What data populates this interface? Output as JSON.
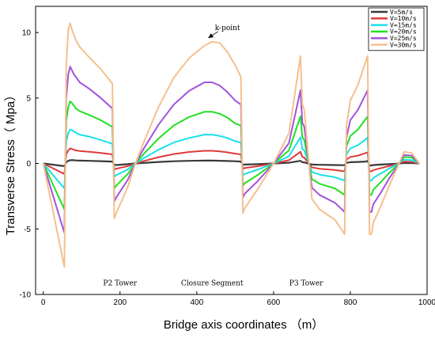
{
  "chart_data": {
    "type": "line",
    "title": "",
    "xlabel": "Bridge axis coordinates （m）",
    "ylabel": "Transverse Stress（ Mpa）",
    "xlim": [
      -20,
      1000
    ],
    "ylim": [
      -10,
      12
    ],
    "xticks": [
      0,
      200,
      400,
      600,
      800,
      1000
    ],
    "yticks": [
      -10,
      -5,
      0,
      5,
      10
    ],
    "x": [
      0,
      55,
      60,
      65,
      70,
      75,
      80,
      85,
      95,
      120,
      150,
      180,
      185,
      190,
      220,
      240,
      260,
      300,
      340,
      380,
      420,
      440,
      460,
      480,
      500,
      515,
      520,
      525,
      560,
      600,
      640,
      670,
      675,
      680,
      700,
      720,
      760,
      785,
      790,
      800,
      820,
      840,
      845,
      850,
      855,
      860,
      880,
      900,
      920,
      940,
      960,
      980
    ],
    "series": [
      {
        "name": "V=5m/s",
        "color": "#3a3a3a",
        "values": [
          0.0,
          -0.2,
          0.1,
          0.2,
          0.25,
          0.25,
          0.25,
          0.23,
          0.22,
          0.2,
          0.18,
          0.15,
          -0.1,
          -0.12,
          -0.05,
          0.0,
          0.04,
          0.12,
          0.17,
          0.2,
          0.22,
          0.22,
          0.21,
          0.19,
          0.17,
          0.15,
          -0.1,
          -0.08,
          -0.05,
          0.0,
          0.06,
          0.2,
          0.1,
          0.08,
          -0.08,
          -0.1,
          -0.12,
          -0.13,
          0.05,
          0.1,
          0.12,
          0.15,
          0.2,
          -0.15,
          -0.15,
          -0.12,
          -0.08,
          -0.05,
          -0.02,
          0.04,
          0.03,
          0.0
        ]
      },
      {
        "name": "V=10m/s",
        "color": "#e03a3a",
        "values": [
          0.0,
          -0.8,
          0.7,
          1.0,
          1.15,
          1.1,
          1.05,
          1.0,
          0.95,
          0.9,
          0.8,
          0.7,
          -0.45,
          -0.4,
          -0.2,
          0.0,
          0.17,
          0.48,
          0.72,
          0.88,
          0.97,
          0.97,
          0.93,
          0.85,
          0.75,
          0.7,
          -0.4,
          -0.35,
          -0.2,
          0.0,
          0.25,
          0.9,
          0.5,
          0.45,
          -0.3,
          -0.4,
          -0.5,
          -0.6,
          0.3,
          0.5,
          0.6,
          0.8,
          0.85,
          -0.6,
          -0.6,
          -0.5,
          -0.35,
          -0.2,
          -0.05,
          0.15,
          0.12,
          0.0
        ]
      },
      {
        "name": "V=15m/s",
        "color": "#19e0e8",
        "values": [
          0.0,
          -1.9,
          1.7,
          2.3,
          2.6,
          2.55,
          2.45,
          2.35,
          2.2,
          2.05,
          1.8,
          1.5,
          -1.0,
          -0.9,
          -0.45,
          0.0,
          0.38,
          1.05,
          1.6,
          1.95,
          2.2,
          2.2,
          2.1,
          1.95,
          1.7,
          1.6,
          -0.9,
          -0.8,
          -0.45,
          0.0,
          0.55,
          2.0,
          1.1,
          1.0,
          -0.65,
          -0.85,
          -1.05,
          -1.3,
          0.7,
          1.15,
          1.4,
          1.85,
          2.0,
          -1.3,
          -1.3,
          -1.1,
          -0.75,
          -0.4,
          -0.1,
          0.3,
          0.25,
          0.0
        ]
      },
      {
        "name": "V=20m/s",
        "color": "#22e022",
        "values": [
          0.0,
          -3.5,
          3.3,
          4.3,
          4.75,
          4.6,
          4.4,
          4.2,
          4.0,
          3.7,
          3.3,
          2.8,
          -1.9,
          -1.7,
          -0.8,
          0.0,
          0.68,
          1.9,
          2.9,
          3.55,
          3.95,
          3.95,
          3.8,
          3.5,
          3.05,
          2.9,
          -1.7,
          -1.5,
          -0.85,
          0.0,
          1.0,
          3.6,
          2.0,
          1.8,
          -1.2,
          -1.55,
          -1.9,
          -2.4,
          1.3,
          2.1,
          2.6,
          3.4,
          3.6,
          -2.4,
          -2.4,
          -2.0,
          -1.4,
          -0.75,
          -0.2,
          0.5,
          0.45,
          0.0
        ]
      },
      {
        "name": "V=25m/s",
        "color": "#a154dc",
        "values": [
          0.0,
          -5.3,
          5.0,
          6.8,
          7.4,
          7.1,
          6.8,
          6.6,
          6.2,
          5.7,
          5.0,
          4.2,
          -2.9,
          -2.6,
          -1.25,
          0.0,
          1.05,
          2.95,
          4.5,
          5.55,
          6.2,
          6.2,
          5.95,
          5.45,
          4.8,
          4.5,
          -2.6,
          -2.3,
          -1.3,
          0.0,
          1.55,
          5.6,
          3.1,
          2.8,
          -1.85,
          -2.4,
          -3.0,
          -3.7,
          2.0,
          3.3,
          4.1,
          5.3,
          5.6,
          -3.7,
          -3.7,
          -3.1,
          -2.2,
          -1.2,
          -0.3,
          0.65,
          0.6,
          0.0
        ]
      },
      {
        "name": "V=30m/s",
        "color": "#f5c08e",
        "values": [
          0.0,
          -7.9,
          7.5,
          10.2,
          10.7,
          10.2,
          9.8,
          9.4,
          8.9,
          8.1,
          7.2,
          6.1,
          -4.2,
          -3.8,
          -1.8,
          0.0,
          1.5,
          4.3,
          6.55,
          8.05,
          9.0,
          9.3,
          9.2,
          8.5,
          7.5,
          6.6,
          -3.8,
          -3.4,
          -1.9,
          0.0,
          2.3,
          8.2,
          4.5,
          4.1,
          -2.7,
          -3.5,
          -4.3,
          -5.4,
          2.9,
          4.8,
          6.0,
          7.8,
          8.2,
          -5.4,
          -5.4,
          -4.5,
          -3.2,
          -1.8,
          -0.45,
          0.9,
          0.8,
          0.0
        ]
      }
    ],
    "annotations": [
      {
        "text": "k-point",
        "x": 480,
        "y": 10.2,
        "arrow_to": [
          430,
          9.4
        ]
      },
      {
        "text": "P2 Tower",
        "x": 200,
        "y": -9.3
      },
      {
        "text": "Closure Segment",
        "x": 440,
        "y": -9.3
      },
      {
        "text": "P3 Tower",
        "x": 685,
        "y": -9.3
      }
    ],
    "legend_position": "top-right",
    "grid": false
  }
}
